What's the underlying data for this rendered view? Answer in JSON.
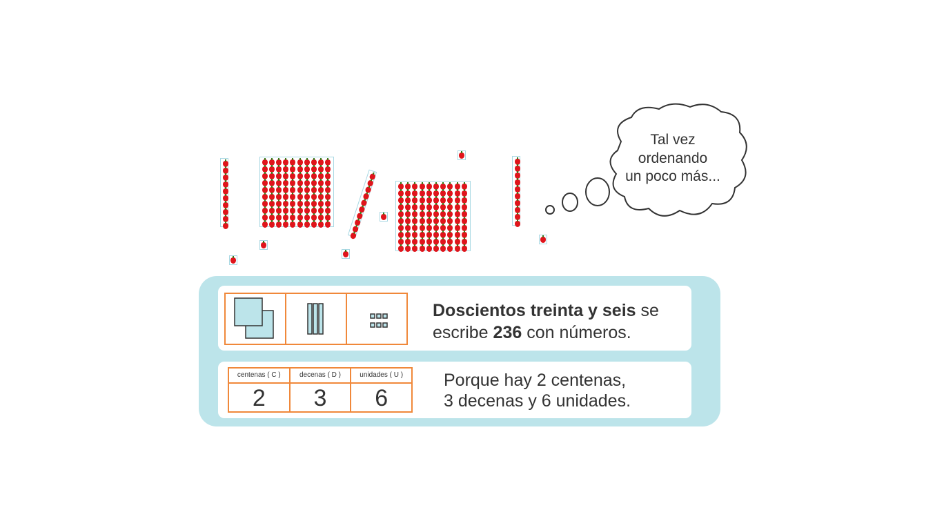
{
  "thought": {
    "line1": "Tal vez",
    "line2": "ordenando",
    "line3": "un poco más..."
  },
  "colors": {
    "panel": "#bce4ea",
    "orange": "#f0883a",
    "apple": "#e0141b",
    "block_outline": "#a8d8e3"
  },
  "number_word": {
    "bold_words": "Doscientos treinta y seis",
    "after_words": " se",
    "line2_pre": "escribe ",
    "number": "236",
    "line2_post": " con números."
  },
  "place_value": {
    "headers": [
      "centenas ( C )",
      "decenas ( D )",
      "unidades ( U )"
    ],
    "values": [
      "2",
      "3",
      "6"
    ]
  },
  "explanation": {
    "line1": "Porque hay 2 centenas,",
    "line2": "3 decenas y 6 unidades."
  }
}
